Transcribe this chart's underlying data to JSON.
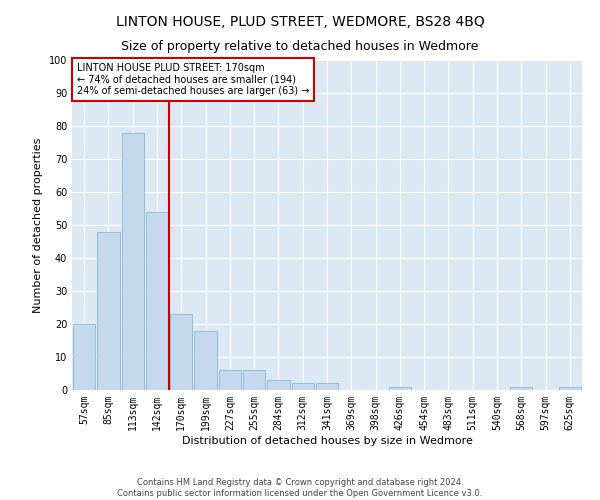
{
  "title": "LINTON HOUSE, PLUD STREET, WEDMORE, BS28 4BQ",
  "subtitle": "Size of property relative to detached houses in Wedmore",
  "xlabel": "Distribution of detached houses by size in Wedmore",
  "ylabel": "Number of detached properties",
  "bar_color": "#c5d8ee",
  "bar_edge_color": "#7aafd4",
  "background_color": "#dce9f5",
  "annotation_line_color": "#cc0000",
  "annotation_box_color": "#cc0000",
  "annotation_text": "LINTON HOUSE PLUD STREET: 170sqm\n← 74% of detached houses are smaller (194)\n24% of semi-detached houses are larger (63) →",
  "property_bin_index": 4,
  "categories": [
    "57sqm",
    "85sqm",
    "113sqm",
    "142sqm",
    "170sqm",
    "199sqm",
    "227sqm",
    "255sqm",
    "284sqm",
    "312sqm",
    "341sqm",
    "369sqm",
    "398sqm",
    "426sqm",
    "454sqm",
    "483sqm",
    "511sqm",
    "540sqm",
    "568sqm",
    "597sqm",
    "625sqm"
  ],
  "values": [
    20,
    48,
    78,
    54,
    23,
    18,
    6,
    6,
    3,
    2,
    2,
    0,
    0,
    1,
    0,
    0,
    0,
    0,
    1,
    0,
    1
  ],
  "ylim": [
    0,
    100
  ],
  "yticks": [
    0,
    10,
    20,
    30,
    40,
    50,
    60,
    70,
    80,
    90,
    100
  ],
  "footer": "Contains HM Land Registry data © Crown copyright and database right 2024.\nContains public sector information licensed under the Open Government Licence v3.0.",
  "title_fontsize": 10,
  "subtitle_fontsize": 9,
  "tick_fontsize": 7,
  "ylabel_fontsize": 8,
  "xlabel_fontsize": 8,
  "annotation_fontsize": 7,
  "footer_fontsize": 6
}
